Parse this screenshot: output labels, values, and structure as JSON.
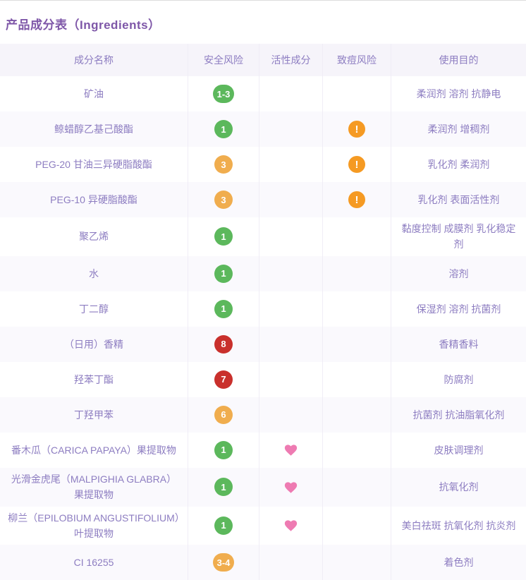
{
  "page": {
    "title": "产品成分表（Ingredients）"
  },
  "table": {
    "columns": [
      {
        "label": "成分名称"
      },
      {
        "label": "安全风险"
      },
      {
        "label": "活性成分"
      },
      {
        "label": "致痘风险"
      },
      {
        "label": "使用目的"
      }
    ],
    "rows": [
      {
        "name": "矿油",
        "safety": "1-3",
        "safety_level": "low",
        "active": false,
        "acne": false,
        "purpose": "柔润剂 溶剂 抗静电"
      },
      {
        "name": "鲸蜡醇乙基己酸酯",
        "safety": "1",
        "safety_level": "low",
        "active": false,
        "acne": true,
        "purpose": "柔润剂 增稠剂"
      },
      {
        "name": "PEG-20 甘油三异硬脂酸酯",
        "safety": "3",
        "safety_level": "medium",
        "active": false,
        "acne": true,
        "purpose": "乳化剂 柔润剂"
      },
      {
        "name": "PEG-10 异硬脂酸酯",
        "safety": "3",
        "safety_level": "medium",
        "active": false,
        "acne": true,
        "purpose": "乳化剂 表面活性剂"
      },
      {
        "name": "聚乙烯",
        "safety": "1",
        "safety_level": "low",
        "active": false,
        "acne": false,
        "purpose": "黏度控制 成膜剂 乳化稳定剂"
      },
      {
        "name": "水",
        "safety": "1",
        "safety_level": "low",
        "active": false,
        "acne": false,
        "purpose": "溶剂"
      },
      {
        "name": "丁二醇",
        "safety": "1",
        "safety_level": "low",
        "active": false,
        "acne": false,
        "purpose": "保湿剂 溶剂 抗菌剂"
      },
      {
        "name": "（日用）香精",
        "safety": "8",
        "safety_level": "high",
        "active": false,
        "acne": false,
        "purpose": "香精香料"
      },
      {
        "name": "羟苯丁酯",
        "safety": "7",
        "safety_level": "high",
        "active": false,
        "acne": false,
        "purpose": "防腐剂"
      },
      {
        "name": "丁羟甲苯",
        "safety": "6",
        "safety_level": "medium",
        "active": false,
        "acne": false,
        "purpose": "抗菌剂 抗油脂氧化剂"
      },
      {
        "name": "番木瓜（CARICA PAPAYA）果提取物",
        "safety": "1",
        "safety_level": "low",
        "active": true,
        "acne": false,
        "purpose": "皮肤调理剂"
      },
      {
        "name": "光滑金虎尾（MALPIGHIA GLABRA）果提取物",
        "safety": "1",
        "safety_level": "low",
        "active": true,
        "acne": false,
        "purpose": "抗氧化剂"
      },
      {
        "name": "柳兰（EPILOBIUM ANGUSTIFOLIUM）叶提取物",
        "safety": "1",
        "safety_level": "low",
        "active": true,
        "acne": false,
        "purpose": "美白祛斑 抗氧化剂 抗炎剂"
      },
      {
        "name": "CI 16255",
        "safety": "3-4",
        "safety_level": "medium",
        "active": false,
        "acne": false,
        "purpose": "着色剂"
      }
    ]
  },
  "icons": {
    "active_marker": "heart-icon",
    "acne_marker": "exclamation-icon"
  },
  "colors": {
    "title_purple": "#7e57a8",
    "text_purple": "#8d7dc1",
    "badge_low": "#5cb85c",
    "badge_medium": "#f0ad4e",
    "badge_high": "#c9302c",
    "acne_warning": "#f59a23",
    "heart_pink": "#ee7bb2",
    "header_bg": "#f6f4fa",
    "alt_row_bg": "#faf9fd"
  }
}
